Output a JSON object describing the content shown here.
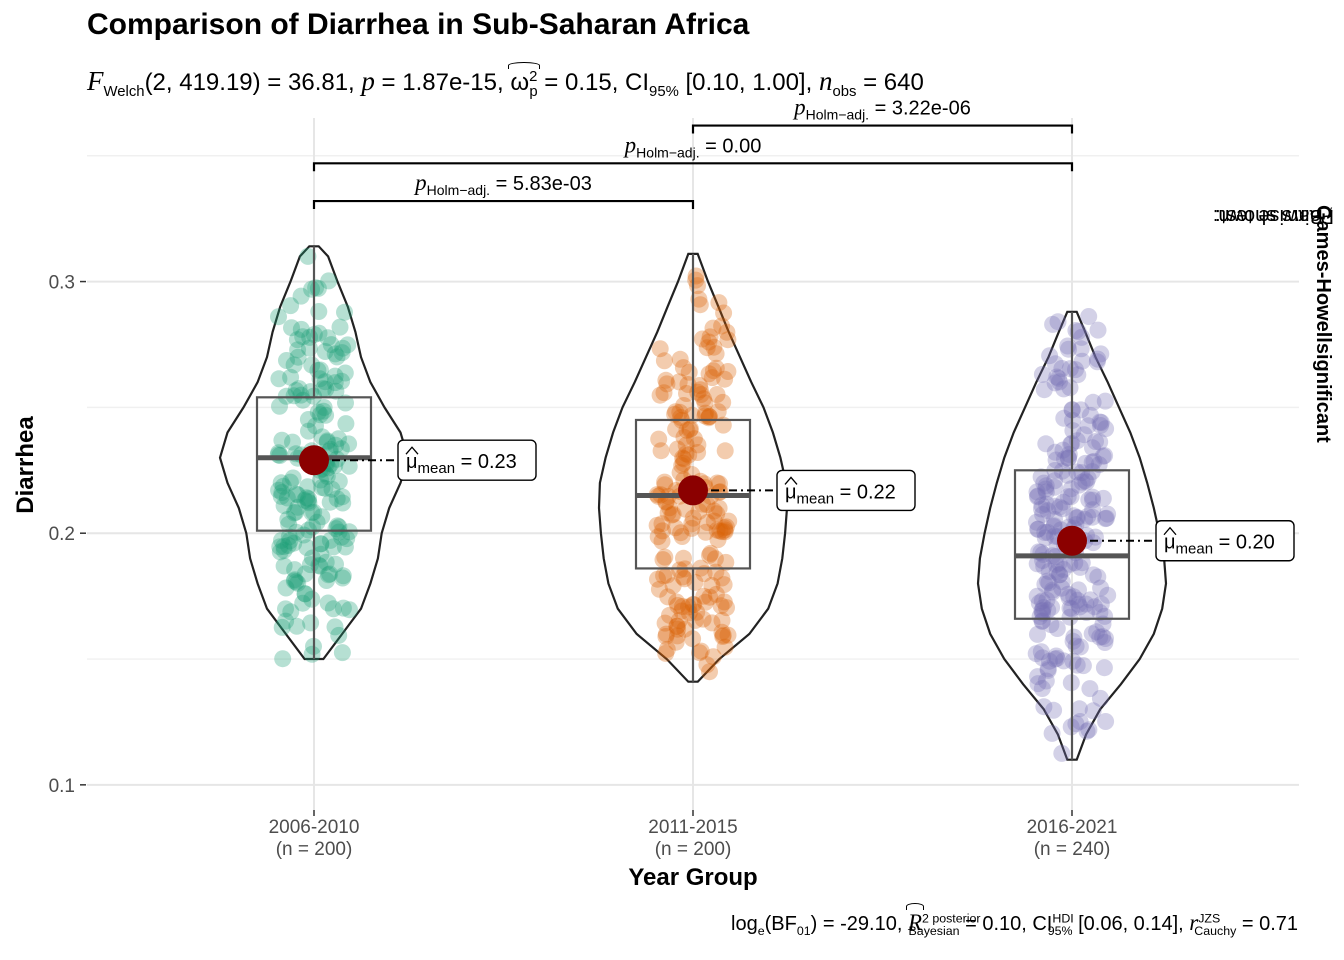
{
  "chart_data": {
    "type": "violin-box-scatter",
    "title": "Comparison of Diarrhea in Sub-Saharan Africa",
    "subtitle": {
      "F_label": "F",
      "F_sub": "Welch",
      "F_args": "(2, 419.19)",
      "F_value": " = 36.81, ",
      "p_label": "p",
      "p_value": " = 1.87e-15, ",
      "omega_symbol": "ω",
      "omega_sup": "2",
      "omega_sub": "p",
      "omega_value": " = 0.15, CI",
      "ci_sub": "95%",
      "ci_value": " [0.10, 1.00], ",
      "n_label": "n",
      "n_sub": "obs",
      "n_value": " = 640"
    },
    "caption": {
      "bf_prefix": "log",
      "bf_sub_e": "e",
      "bf_paren_open": "(BF",
      "bf_sub_01": "01",
      "bf_value": ") = -29.10, ",
      "r2_label": "R",
      "r2_sup": "2 posterior",
      "r2_sub": "Bayesian",
      "r2_value": " = 0.10, CI",
      "hdi_sup": "HDI",
      "hdi_sub": "95%",
      "hdi_value": " [0.06, 0.14], ",
      "r_label": "r",
      "r_sup": "JZS",
      "r_sub": "Cauchy",
      "r_value": " = 0.71"
    },
    "xlabel": "Year Group",
    "ylabel": "Diarrhea",
    "ylim": [
      0.09,
      0.365
    ],
    "yticks": [
      0.1,
      0.2,
      0.3
    ],
    "ytick_labels": [
      "0.1",
      "0.2",
      "0.3"
    ],
    "grid": true,
    "right_caption_prefix": "Pairwise test: ",
    "right_caption_test": "Games-Howell",
    "right_caption_mid": ", Bars shown: ",
    "right_caption_bars": "significant",
    "groups": [
      {
        "name": "2006-2010",
        "n_label": "(n = 200)",
        "color": "#1b9e77",
        "min": 0.15,
        "q1": 0.201,
        "median": 0.23,
        "q3": 0.254,
        "max": 0.314,
        "mean": 0.229,
        "mean_label": "0.23",
        "density": [
          [
            0.15,
            0.1
          ],
          [
            0.16,
            0.3
          ],
          [
            0.17,
            0.5
          ],
          [
            0.18,
            0.6
          ],
          [
            0.19,
            0.68
          ],
          [
            0.2,
            0.72
          ],
          [
            0.21,
            0.8
          ],
          [
            0.22,
            0.92
          ],
          [
            0.23,
            1.0
          ],
          [
            0.24,
            0.92
          ],
          [
            0.25,
            0.75
          ],
          [
            0.26,
            0.6
          ],
          [
            0.27,
            0.5
          ],
          [
            0.28,
            0.44
          ],
          [
            0.29,
            0.36
          ],
          [
            0.3,
            0.25
          ],
          [
            0.31,
            0.15
          ],
          [
            0.314,
            0.05
          ]
        ]
      },
      {
        "name": "2011-2015",
        "n_label": "(n = 200)",
        "color": "#d95f02",
        "min": 0.141,
        "q1": 0.186,
        "median": 0.215,
        "q3": 0.245,
        "max": 0.311,
        "mean": 0.217,
        "mean_label": "0.22",
        "density": [
          [
            0.141,
            0.05
          ],
          [
            0.15,
            0.28
          ],
          [
            0.16,
            0.6
          ],
          [
            0.17,
            0.8
          ],
          [
            0.18,
            0.9
          ],
          [
            0.19,
            0.95
          ],
          [
            0.2,
            0.98
          ],
          [
            0.21,
            1.0
          ],
          [
            0.22,
            0.99
          ],
          [
            0.23,
            0.93
          ],
          [
            0.24,
            0.85
          ],
          [
            0.25,
            0.75
          ],
          [
            0.26,
            0.62
          ],
          [
            0.27,
            0.5
          ],
          [
            0.28,
            0.38
          ],
          [
            0.29,
            0.27
          ],
          [
            0.3,
            0.16
          ],
          [
            0.311,
            0.05
          ]
        ]
      },
      {
        "name": "2016-2021",
        "n_label": "(n = 240)",
        "color": "#7570b3",
        "min": 0.11,
        "q1": 0.166,
        "median": 0.191,
        "q3": 0.225,
        "max": 0.288,
        "mean": 0.197,
        "mean_label": "0.20",
        "density": [
          [
            0.11,
            0.05
          ],
          [
            0.12,
            0.15
          ],
          [
            0.13,
            0.3
          ],
          [
            0.14,
            0.52
          ],
          [
            0.15,
            0.72
          ],
          [
            0.16,
            0.87
          ],
          [
            0.17,
            0.96
          ],
          [
            0.18,
            1.0
          ],
          [
            0.19,
            0.98
          ],
          [
            0.2,
            0.93
          ],
          [
            0.21,
            0.87
          ],
          [
            0.22,
            0.8
          ],
          [
            0.23,
            0.72
          ],
          [
            0.24,
            0.62
          ],
          [
            0.25,
            0.5
          ],
          [
            0.26,
            0.38
          ],
          [
            0.27,
            0.25
          ],
          [
            0.28,
            0.14
          ],
          [
            0.288,
            0.05
          ]
        ]
      }
    ],
    "mean_label_prefix": "μ",
    "mean_label_sub": "mean",
    "mean_label_eq": " = ",
    "pairwise": [
      {
        "from": 0,
        "to": 1,
        "y": 0.332,
        "p_label": "p",
        "p_sub": "Holm−adj.",
        "p_value": " = 5.83e-03"
      },
      {
        "from": 0,
        "to": 2,
        "y": 0.347,
        "p_label": "p",
        "p_sub": "Holm−adj.",
        "p_value": " = 0.00"
      },
      {
        "from": 1,
        "to": 2,
        "y": 0.362,
        "p_label": "p",
        "p_sub": "Holm−adj.",
        "p_value": " = 3.22e-06"
      }
    ]
  }
}
